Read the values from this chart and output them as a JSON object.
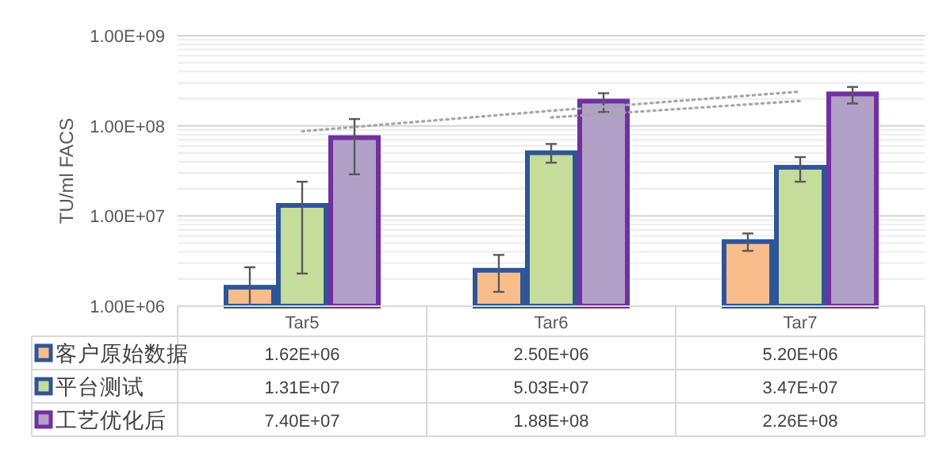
{
  "chart_data": {
    "type": "bar",
    "ylabel": "TU/ml FACS",
    "categories": [
      "Tar5",
      "Tar6",
      "Tar7"
    ],
    "log": "y",
    "grid": true,
    "legend": "bottom",
    "ylim": [
      1000000,
      1000000000
    ],
    "yticks": [
      {
        "value": 1000000,
        "label": "1.00E+06"
      },
      {
        "value": 10000000,
        "label": "1.00E+07"
      },
      {
        "value": 100000000,
        "label": "1.00E+08"
      },
      {
        "value": 1000000000,
        "label": "1.00E+09"
      }
    ],
    "series": [
      {
        "name": "客户原始数据",
        "color": "#f9bd8c",
        "values": [
          1620000,
          2500000,
          5200000
        ],
        "value_labels": [
          "1.62E+06",
          "2.50E+06",
          "5.20E+06"
        ],
        "errors": [
          [
            1000000,
            2700000
          ],
          [
            1440000,
            3700000
          ],
          [
            4100000,
            6400000
          ]
        ]
      },
      {
        "name": "平台测试",
        "color": "#c5dc9a",
        "values": [
          13100000,
          50300000,
          34700000
        ],
        "value_labels": [
          "1.31E+07",
          "5.03E+07",
          "3.47E+07"
        ],
        "errors": [
          [
            2300000,
            24000000
          ],
          [
            39000000,
            63000000
          ],
          [
            24000000,
            45000000
          ]
        ]
      },
      {
        "name": "工艺优化后",
        "color": "#b1a0c7",
        "values": [
          74000000,
          188000000,
          226000000
        ],
        "value_labels": [
          "7.40E+07",
          "1.88E+08",
          "2.26E+08"
        ],
        "errors": [
          [
            29000000,
            119000000
          ],
          [
            142000000,
            230000000
          ],
          [
            177000000,
            270000000
          ]
        ]
      },
      {
        "type": "line",
        "color": "#a6a6a6",
        "line_style": "dotted",
        "values": [
          87000000,
          147000000,
          240000000
        ]
      },
      {
        "type": "line",
        "color": "#a6a6a6",
        "line_style": "dotted",
        "values": [
          null,
          124000000,
          189000000
        ]
      }
    ]
  }
}
